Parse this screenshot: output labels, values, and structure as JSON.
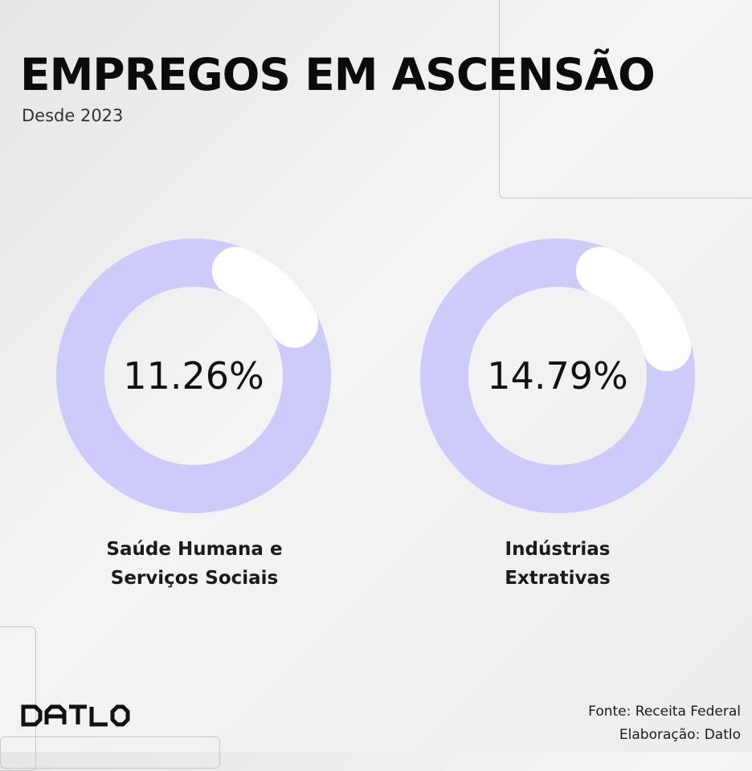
{
  "header": {
    "title": "EMPREGOS EM ASCENSÃO",
    "subtitle": "Desde 2023"
  },
  "chart_data": {
    "type": "pie",
    "title": "EMPREGOS EM ASCENSÃO",
    "subtitle": "Desde 2023",
    "series": [
      {
        "name": "Saúde Humana e Serviços Sociais",
        "label_lines": [
          "Saúde Humana e",
          "Serviços Sociais"
        ],
        "value": 11.26,
        "value_label": "11.26%"
      },
      {
        "name": "Indústrias Extrativas",
        "label_lines": [
          "Indústrias",
          "Extrativas"
        ],
        "value": 14.79,
        "value_label": "14.79%"
      }
    ]
  },
  "colors": {
    "ring": "#cccbfa",
    "highlight": "#ffffff",
    "text": "#111111"
  },
  "footer": {
    "logo_text": "DATLO",
    "source": "Fonte: Receita Federal",
    "credit": "Elaboração: Datlo"
  }
}
